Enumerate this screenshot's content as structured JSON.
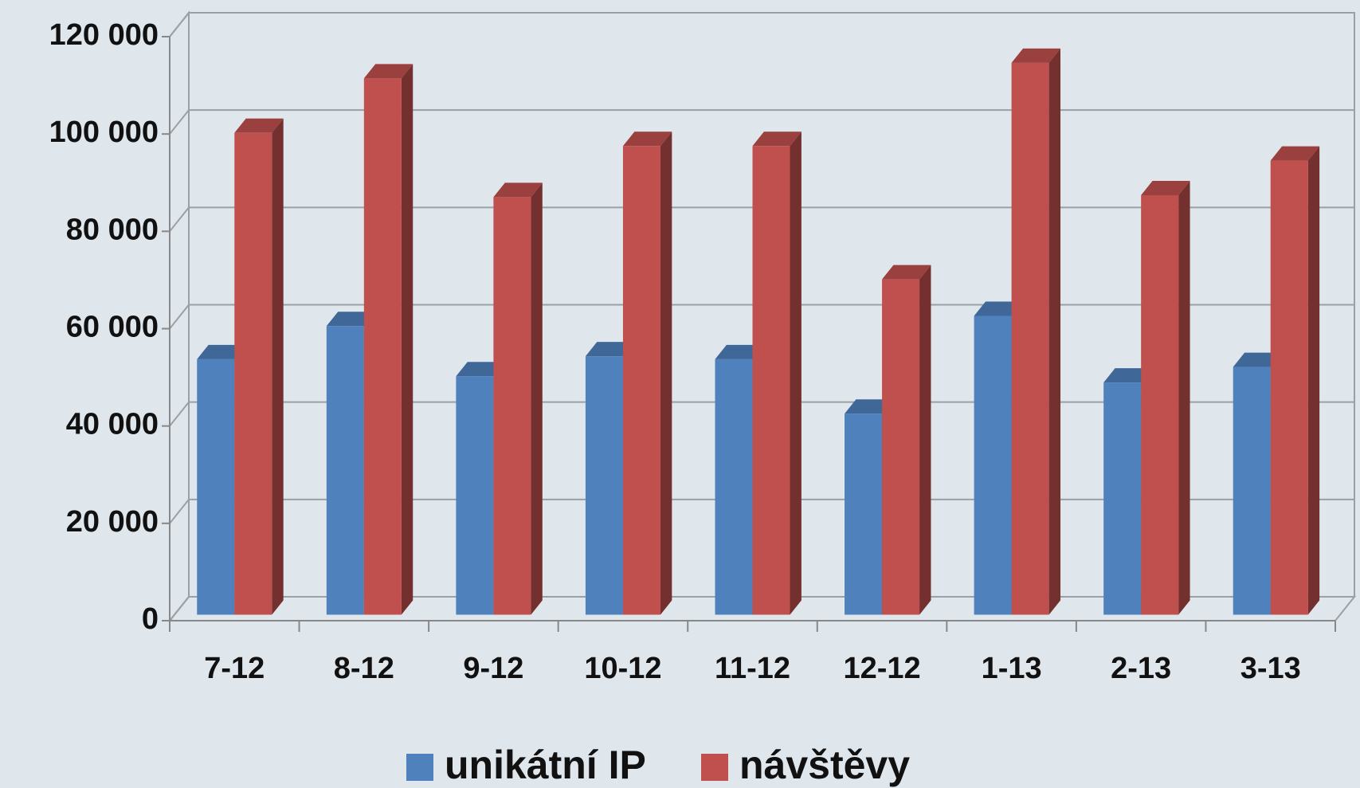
{
  "chart_data": {
    "type": "bar3d",
    "categories": [
      "7-12",
      "8-12",
      "9-12",
      "10-12",
      "11-12",
      "12-12",
      "1-13",
      "2-13",
      "3-13"
    ],
    "series": [
      {
        "name": "unikátní IP",
        "color": "#4f81bd",
        "values": [
          52500,
          59300,
          49000,
          53100,
          52500,
          41300,
          61400,
          47700,
          50900
        ]
      },
      {
        "name": "návštěvy",
        "color": "#c0504d",
        "values": [
          99000,
          110200,
          85800,
          96300,
          96300,
          68900,
          113400,
          86200,
          93300
        ]
      }
    ],
    "ylim": [
      0,
      120000
    ],
    "yticks": [
      0,
      {
        "value": 20000,
        "label": "20 000"
      },
      {
        "value": 40000,
        "label": "40 000"
      },
      {
        "value": 60000,
        "label": "60 000"
      },
      {
        "value": 80000,
        "label": "80 000"
      },
      {
        "value": 100000,
        "label": "100 000"
      },
      {
        "value": 120000,
        "label": "120 000"
      }
    ],
    "grid": true
  }
}
